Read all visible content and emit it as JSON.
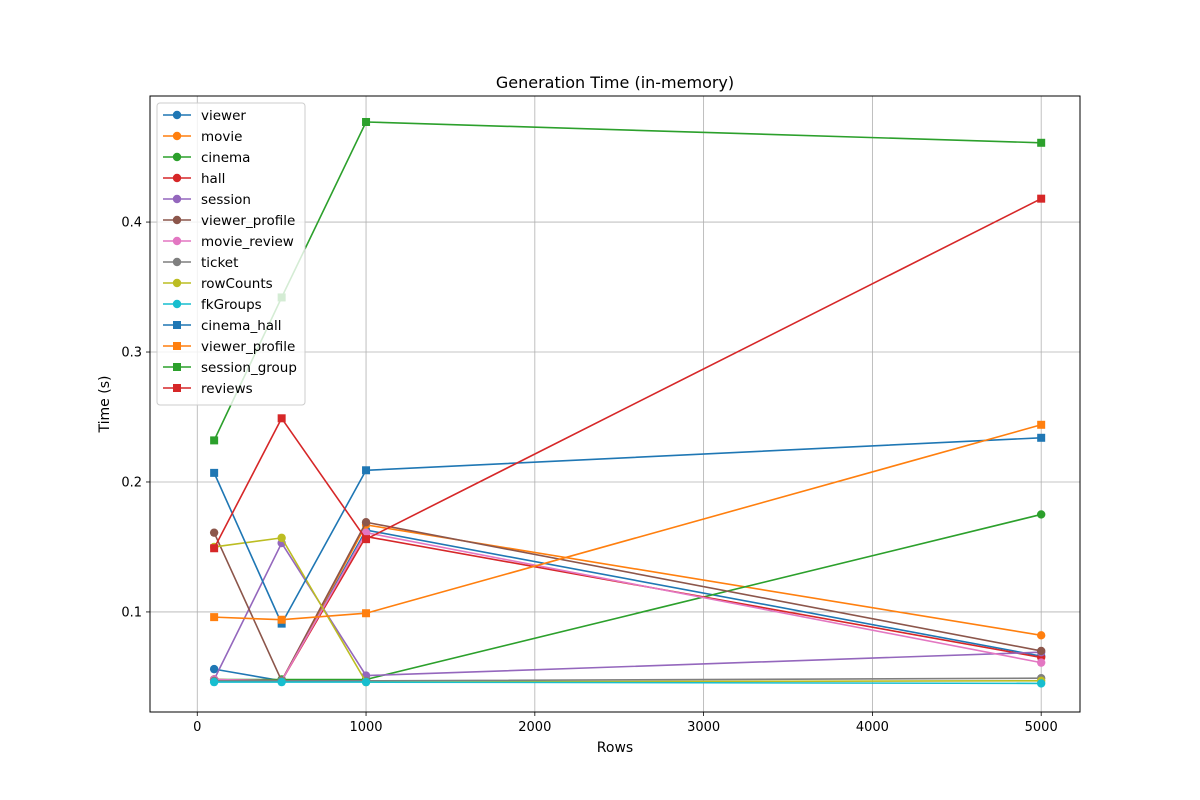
{
  "chart_data": {
    "type": "line",
    "title": "Generation Time (in-memory)",
    "xlabel": "Rows",
    "ylabel": "Time (s)",
    "xlim": [
      -280,
      5230
    ],
    "ylim": [
      0.023,
      0.497
    ],
    "x_ticks": [
      0,
      1000,
      2000,
      3000,
      4000,
      5000
    ],
    "y_ticks": [
      0.1,
      0.2,
      0.3,
      0.4
    ],
    "grid": true,
    "legend_position": "upper-left",
    "x": [
      100,
      500,
      1000,
      5000
    ],
    "series": [
      {
        "name": "viewer",
        "color": "#1f77b4",
        "marker": "circle",
        "values": [
          0.056,
          0.047,
          0.163,
          0.066
        ]
      },
      {
        "name": "movie",
        "color": "#ff7f0e",
        "marker": "circle",
        "values": [
          0.048,
          0.047,
          0.167,
          0.082
        ]
      },
      {
        "name": "cinema",
        "color": "#2ca02c",
        "marker": "circle",
        "values": [
          0.048,
          0.048,
          0.048,
          0.175
        ]
      },
      {
        "name": "hall",
        "color": "#d62728",
        "marker": "circle",
        "values": [
          0.048,
          0.047,
          0.158,
          0.065
        ]
      },
      {
        "name": "session",
        "color": "#9467bd",
        "marker": "circle",
        "values": [
          0.048,
          0.153,
          0.051,
          0.069
        ]
      },
      {
        "name": "viewer_profile",
        "color": "#8c564b",
        "marker": "circle",
        "values": [
          0.161,
          0.047,
          0.169,
          0.07
        ]
      },
      {
        "name": "movie_review",
        "color": "#e377c2",
        "marker": "circle",
        "values": [
          0.048,
          0.047,
          0.161,
          0.061
        ]
      },
      {
        "name": "ticket",
        "color": "#7f7f7f",
        "marker": "circle",
        "values": [
          0.047,
          0.047,
          0.047,
          0.049
        ]
      },
      {
        "name": "rowCounts",
        "color": "#bcbd22",
        "marker": "circle",
        "values": [
          0.15,
          0.157,
          0.046,
          0.047
        ]
      },
      {
        "name": "fkGroups",
        "color": "#17becf",
        "marker": "circle",
        "values": [
          0.046,
          0.046,
          0.046,
          0.045
        ]
      },
      {
        "name": "cinema_hall",
        "color": "#1f77b4",
        "marker": "square",
        "values": [
          0.207,
          0.091,
          0.209,
          0.234
        ]
      },
      {
        "name": "viewer_profile",
        "color": "#ff7f0e",
        "marker": "square",
        "values": [
          0.096,
          0.094,
          0.099,
          0.244
        ]
      },
      {
        "name": "session_group",
        "color": "#2ca02c",
        "marker": "square",
        "values": [
          0.232,
          0.342,
          0.477,
          0.461
        ]
      },
      {
        "name": "reviews",
        "color": "#d62728",
        "marker": "square",
        "values": [
          0.149,
          0.249,
          0.156,
          0.418
        ]
      }
    ]
  }
}
